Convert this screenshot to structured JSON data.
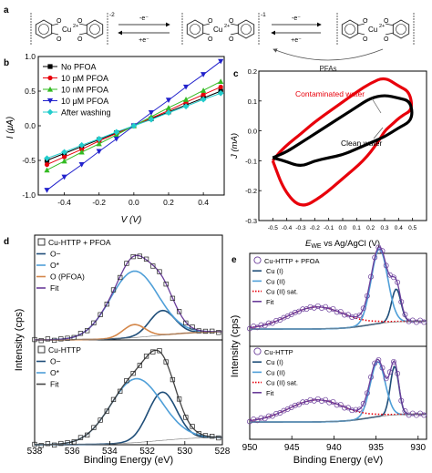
{
  "panels": {
    "a": {
      "label": "a",
      "charges": [
        "-2",
        "-1"
      ],
      "arrow_labels": [
        "-e⁻",
        "+e⁻",
        "-e⁻",
        "+e⁻"
      ],
      "cu_label": "Cu",
      "cu_charge": "2+",
      "o_label": "O",
      "pfas_label": "PFAs"
    },
    "b": {
      "label": "b",
      "xlabel": "V (V)",
      "ylabel": "I (μA)"
    },
    "c": {
      "label": "c",
      "xlabel": "E_WE vs Ag/AgCl (V)",
      "xlabel_main": "E",
      "xlabel_sub": "WE",
      "xlabel_rest": " vs Ag/AgCl (V)",
      "ylabel": "J (mA)",
      "annotations": [
        "Contaminated water",
        "Clean water"
      ]
    },
    "d": {
      "label": "d",
      "xlabel": "Binding Energy (eV)",
      "ylabel": "Intensity (cps)"
    },
    "e": {
      "label": "e",
      "xlabel": "Binding Energy (eV)",
      "ylabel": "Intensity (cps)"
    }
  },
  "chart_data": [
    {
      "id": "b",
      "type": "line",
      "x": [
        -0.5,
        -0.4,
        -0.3,
        -0.2,
        -0.1,
        0.0,
        0.1,
        0.2,
        0.3,
        0.4,
        0.5
      ],
      "series": [
        {
          "name": "No PFOA",
          "color": "#000000",
          "marker": "square",
          "values": [
            -0.5,
            -0.4,
            -0.3,
            -0.2,
            -0.1,
            0.0,
            0.1,
            0.2,
            0.3,
            0.4,
            0.5
          ]
        },
        {
          "name": "10 pM PFOA",
          "color": "#e8000b",
          "marker": "circle",
          "values": [
            -0.56,
            -0.45,
            -0.34,
            -0.22,
            -0.11,
            0.0,
            0.11,
            0.22,
            0.34,
            0.45,
            0.56
          ]
        },
        {
          "name": "10 nM PFOA",
          "color": "#33bb22",
          "marker": "triangle-up",
          "values": [
            -0.64,
            -0.51,
            -0.38,
            -0.26,
            -0.13,
            0.0,
            0.13,
            0.26,
            0.38,
            0.51,
            0.64
          ]
        },
        {
          "name": "10 μM PFOA",
          "color": "#2222cc",
          "marker": "triangle-down",
          "values": [
            -0.93,
            -0.74,
            -0.56,
            -0.37,
            -0.19,
            0.0,
            0.19,
            0.37,
            0.56,
            0.74,
            0.93
          ]
        },
        {
          "name": "After washing",
          "color": "#22cccc",
          "marker": "diamond",
          "values": [
            -0.47,
            -0.38,
            -0.28,
            -0.19,
            -0.09,
            0.0,
            0.09,
            0.19,
            0.28,
            0.38,
            0.47
          ]
        }
      ],
      "xlim": [
        -0.55,
        0.52
      ],
      "ylim": [
        -1.0,
        1.0
      ],
      "xticks": [
        -0.4,
        -0.2,
        0.0,
        0.2,
        0.4
      ],
      "xtick_labels": [
        "-0.4",
        "-0.2",
        "0.0",
        "0.2",
        "0.4"
      ],
      "yticks": [
        -1.0,
        -0.5,
        0.0,
        0.5,
        1.0
      ],
      "ytick_labels": [
        "-1.0",
        "-0.5",
        "0.0",
        "0.5",
        "1.0"
      ],
      "legend": "top-left"
    },
    {
      "id": "c",
      "type": "line",
      "series": [
        {
          "name": "Contaminated water",
          "color": "#e8000b",
          "x": [
            -0.5,
            -0.42,
            -0.3,
            -0.15,
            0.0,
            0.15,
            0.25,
            0.3,
            0.35,
            0.42,
            0.5,
            0.48,
            0.4,
            0.3,
            0.2,
            0.1,
            -0.05,
            -0.2,
            -0.3,
            -0.38,
            -0.45,
            -0.5
          ],
          "y": [
            -0.1,
            -0.2,
            -0.26,
            -0.22,
            -0.16,
            -0.1,
            -0.04,
            0.0,
            0.02,
            0.05,
            0.07,
            0.13,
            0.15,
            0.18,
            0.16,
            0.13,
            0.08,
            0.03,
            -0.01,
            -0.04,
            -0.07,
            -0.1
          ]
        },
        {
          "name": "Clean water",
          "color": "#000000",
          "x": [
            -0.5,
            -0.42,
            -0.3,
            -0.2,
            -0.1,
            0.0,
            0.1,
            0.2,
            0.3,
            0.4,
            0.48,
            0.5,
            0.48,
            0.4,
            0.3,
            0.2,
            0.1,
            0.0,
            -0.1,
            -0.2,
            -0.3,
            -0.4,
            -0.5
          ],
          "y": [
            -0.09,
            -0.1,
            -0.12,
            -0.1,
            -0.09,
            -0.08,
            -0.06,
            -0.04,
            -0.02,
            0.01,
            0.03,
            0.06,
            0.1,
            0.11,
            0.12,
            0.11,
            0.08,
            0.05,
            0.02,
            -0.01,
            -0.04,
            -0.07,
            -0.09
          ]
        }
      ],
      "xlim": [
        -0.6,
        0.6
      ],
      "ylim": [
        -0.3,
        0.2
      ],
      "xticks": [
        -0.5,
        -0.4,
        -0.3,
        -0.2,
        -0.1,
        0.0,
        0.1,
        0.2,
        0.3,
        0.4,
        0.5
      ],
      "xtick_labels": [
        "-0.5",
        "-0.4",
        "-0.3",
        "-0.2",
        "-0.1",
        "0.0",
        "0.1",
        "0.2",
        "0.3",
        "0.4",
        "0.5"
      ],
      "yticks": [
        -0.3,
        -0.2,
        -0.1,
        0.0,
        0.1,
        0.2
      ],
      "ytick_labels": [
        "-0.3",
        "-0.2",
        "-0.1",
        "0.0",
        "0.1",
        "0.2"
      ]
    },
    {
      "id": "d-top",
      "type": "line",
      "legend_title": "Cu-HTTP + PFOA",
      "series": [
        {
          "name": "O−",
          "color": "#1f4e79",
          "peak": {
            "center": 531.2,
            "fwhm": 1.6,
            "height": 0.34
          }
        },
        {
          "name": "O*",
          "color": "#4f9fd8",
          "peak": {
            "center": 532.7,
            "fwhm": 3.0,
            "height": 0.92
          }
        },
        {
          "name": "O (PFOA)",
          "color": "#d4874a",
          "peak": {
            "center": 532.7,
            "fwhm": 1.4,
            "height": 0.18
          }
        },
        {
          "name": "Fit",
          "color": "#6a3d9a",
          "envelope": true
        }
      ],
      "xlim": [
        538,
        528
      ],
      "ylim": [
        0,
        1.4
      ]
    },
    {
      "id": "d-bottom",
      "type": "line",
      "legend_title": "Cu-HTTP",
      "series": [
        {
          "name": "O−",
          "color": "#1f4e79",
          "peak": {
            "center": 531.2,
            "fwhm": 1.8,
            "height": 0.62
          }
        },
        {
          "name": "O*",
          "color": "#4f9fd8",
          "peak": {
            "center": 532.6,
            "fwhm": 3.2,
            "height": 0.82
          }
        },
        {
          "name": "Fit",
          "color": "#444444",
          "envelope": true
        }
      ],
      "xlim": [
        538,
        528
      ],
      "xticks": [
        538,
        536,
        534,
        532,
        530,
        528
      ],
      "xtick_labels": [
        "538",
        "536",
        "534",
        "532",
        "530",
        "528"
      ],
      "ylim": [
        0,
        1.3
      ]
    },
    {
      "id": "e-top",
      "type": "line",
      "legend_title": "Cu-HTTP + PFOA",
      "series": [
        {
          "name": "Cu (I)",
          "color": "#1f4e79",
          "peak": {
            "center": 932.6,
            "fwhm": 1.3,
            "height": 0.42
          }
        },
        {
          "name": "Cu (II)",
          "color": "#4f9fd8",
          "peak": {
            "center": 934.6,
            "fwhm": 2.3,
            "height": 0.95
          }
        },
        {
          "name": "Cu (II) sat.",
          "color": "#e8000b",
          "dotted": true,
          "peak": {
            "center": 942.0,
            "fwhm": 8.0,
            "height": 0.28
          }
        },
        {
          "name": "Fit",
          "color": "#6a3d9a",
          "envelope": true
        }
      ],
      "xlim": [
        950,
        929
      ],
      "ylim": [
        0,
        1.15
      ]
    },
    {
      "id": "e-bottom",
      "type": "line",
      "legend_title": "Cu-HTTP",
      "series": [
        {
          "name": "Cu (I)",
          "color": "#1f4e79",
          "peak": {
            "center": 932.8,
            "fwhm": 1.2,
            "height": 0.62
          }
        },
        {
          "name": "Cu (II)",
          "color": "#4f9fd8",
          "peak": {
            "center": 934.8,
            "fwhm": 2.1,
            "height": 0.7
          }
        },
        {
          "name": "Cu (II) sat.",
          "color": "#e8000b",
          "dotted": true,
          "peak": {
            "center": 942.0,
            "fwhm": 8.0,
            "height": 0.28
          }
        },
        {
          "name": "Fit",
          "color": "#6a3d9a",
          "envelope": true
        }
      ],
      "xlim": [
        950,
        929
      ],
      "xticks": [
        950,
        945,
        940,
        935,
        930
      ],
      "xtick_labels": [
        "950",
        "945",
        "940",
        "935",
        "930"
      ],
      "ylim": [
        0,
        1.15
      ]
    }
  ]
}
